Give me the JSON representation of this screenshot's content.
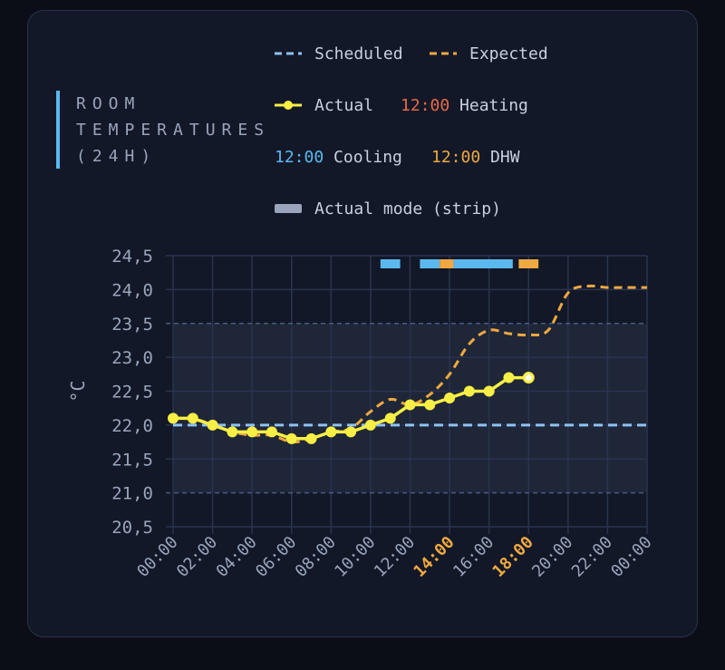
{
  "card": {
    "title": "ROOM\nTEMPERATURES\n(24H)"
  },
  "legend": {
    "scheduled": "Scheduled",
    "expected": "Expected",
    "actual": "Actual",
    "heating_time": "12:00",
    "heating": "Heating",
    "cooling_time": "12:00",
    "cooling": "Cooling",
    "dhw_time": "12:00",
    "dhw": "DHW",
    "actual_mode": "Actual mode (strip)"
  },
  "colors": {
    "scheduled": "#8fc2f0",
    "expected": "#f0a840",
    "actual": "#f7ef45",
    "heating": "#e86a4a",
    "cooling": "#5bb8ee",
    "dhw": "#f0a840",
    "actual_mode": "#9aa4bd",
    "band": "#1e2638",
    "grid": "#2a3350"
  },
  "chart_data": {
    "type": "line",
    "ylabel": "°C",
    "ylim": [
      20.5,
      24.5
    ],
    "yticks": [
      "24,5",
      "24,0",
      "23,5",
      "23,0",
      "22,5",
      "22,0",
      "21,5",
      "21,0",
      "20,5"
    ],
    "ytick_values": [
      24.5,
      24.0,
      23.5,
      23.0,
      22.5,
      22.0,
      21.5,
      21.0,
      20.5
    ],
    "xlim": [
      0,
      24
    ],
    "xticks": [
      "00:00",
      "02:00",
      "04:00",
      "06:00",
      "08:00",
      "10:00",
      "12:00",
      "14:00",
      "16:00",
      "18:00",
      "20:00",
      "22:00",
      "00:00"
    ],
    "xtick_hours": [
      0,
      2,
      4,
      6,
      8,
      10,
      12,
      14,
      16,
      18,
      20,
      22,
      24
    ],
    "xtick_highlight": [
      "14:00",
      "18:00"
    ],
    "comfort_band": [
      21.0,
      23.5
    ],
    "series": [
      {
        "name": "Scheduled",
        "style": "dashed",
        "x": [
          0,
          24
        ],
        "y": [
          22.0,
          22.0
        ]
      },
      {
        "name": "Expected",
        "style": "dashed",
        "x": [
          0,
          1,
          2,
          3,
          4,
          5,
          6,
          7,
          8,
          9,
          10,
          11,
          12,
          13,
          14,
          15,
          16,
          17,
          18,
          19,
          20,
          21,
          22,
          23,
          24
        ],
        "y": [
          22.1,
          22.1,
          22.0,
          21.9,
          21.85,
          21.85,
          21.75,
          21.8,
          21.9,
          21.95,
          22.2,
          22.38,
          22.3,
          22.45,
          22.75,
          23.2,
          23.4,
          23.35,
          23.33,
          23.4,
          23.95,
          24.05,
          24.03,
          24.03,
          24.03
        ]
      },
      {
        "name": "Actual",
        "style": "solid-markers",
        "x": [
          0,
          1,
          2,
          3,
          4,
          5,
          6,
          7,
          8,
          9,
          10,
          11,
          12,
          13,
          14,
          15,
          16,
          17,
          18
        ],
        "y": [
          22.1,
          22.1,
          22.0,
          21.9,
          21.9,
          21.9,
          21.8,
          21.8,
          21.9,
          21.9,
          22.0,
          22.1,
          22.3,
          22.3,
          22.4,
          22.5,
          22.5,
          22.7,
          22.7
        ]
      }
    ],
    "mode_strip": [
      {
        "start": 10.5,
        "end": 11.5,
        "mode": "cooling"
      },
      {
        "start": 12.5,
        "end": 13.5,
        "mode": "cooling"
      },
      {
        "start": 13.5,
        "end": 14.2,
        "mode": "dhw"
      },
      {
        "start": 14.2,
        "end": 17.2,
        "mode": "cooling"
      },
      {
        "start": 17.5,
        "end": 18.5,
        "mode": "dhw"
      }
    ]
  }
}
